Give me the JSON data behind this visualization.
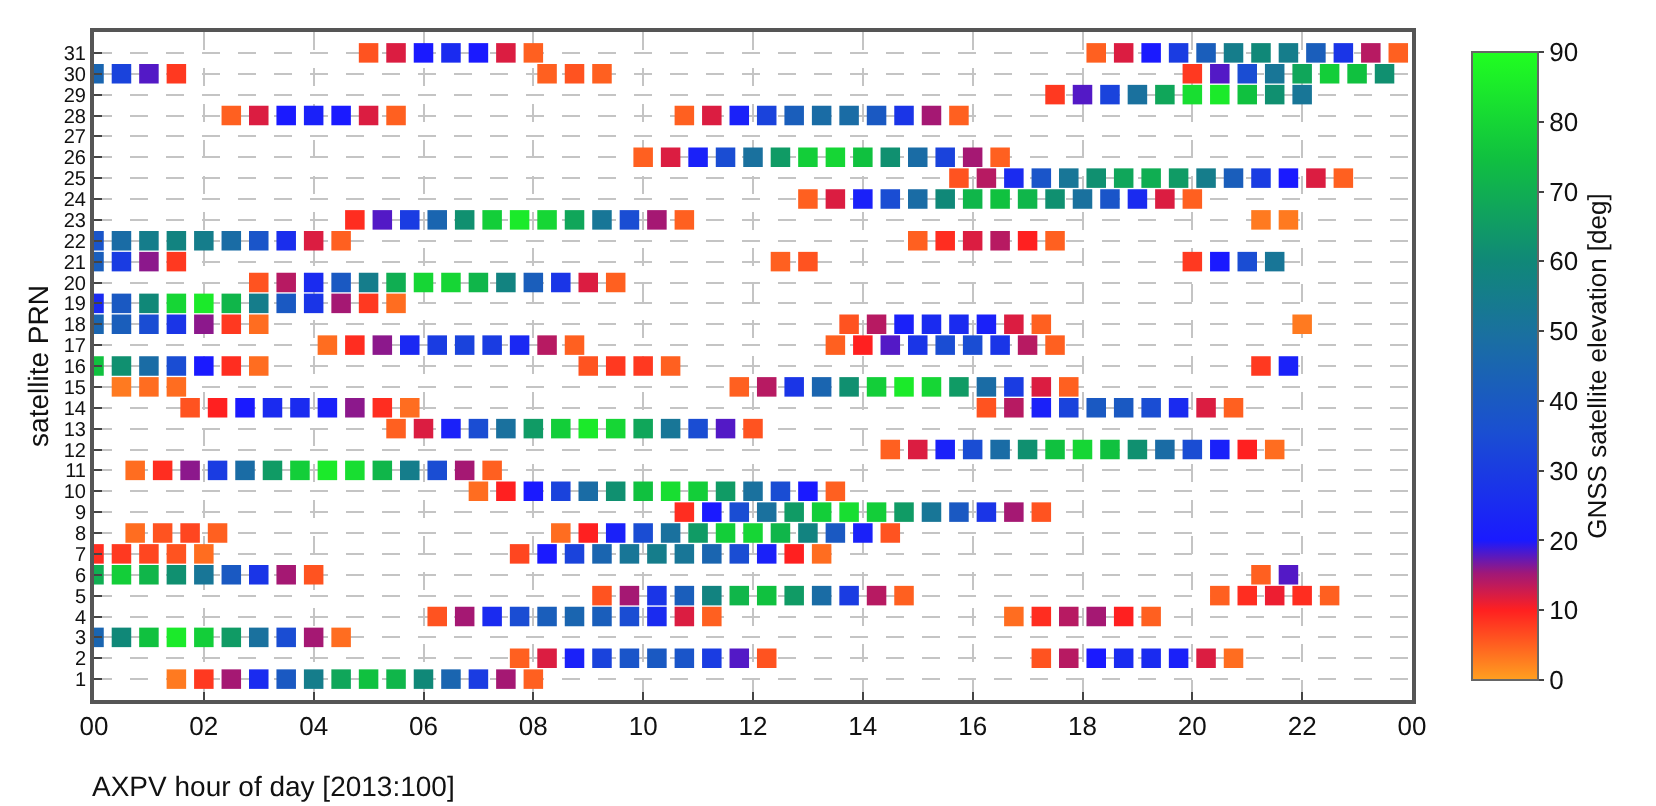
{
  "chart_data": {
    "type": "scatter",
    "xlabel": "AXPV hour of day [2013:100]",
    "ylabel": "satellite PRN",
    "clabel": "GNSS satellite elevation [deg]",
    "xlim": [
      0,
      24
    ],
    "xticks": [
      {
        "value": 0,
        "label": "00"
      },
      {
        "value": 2,
        "label": "02"
      },
      {
        "value": 4,
        "label": "04"
      },
      {
        "value": 6,
        "label": "06"
      },
      {
        "value": 8,
        "label": "08"
      },
      {
        "value": 10,
        "label": "10"
      },
      {
        "value": 12,
        "label": "12"
      },
      {
        "value": 14,
        "label": "14"
      },
      {
        "value": 16,
        "label": "16"
      },
      {
        "value": 18,
        "label": "18"
      },
      {
        "value": 20,
        "label": "20"
      },
      {
        "value": 22,
        "label": "22"
      },
      {
        "value": 24,
        "label": "00"
      }
    ],
    "ylim": [
      0,
      32
    ],
    "yticks": [
      1,
      2,
      3,
      4,
      5,
      6,
      7,
      8,
      9,
      10,
      11,
      12,
      13,
      14,
      15,
      16,
      17,
      18,
      19,
      20,
      21,
      22,
      23,
      24,
      25,
      26,
      27,
      28,
      29,
      30,
      31
    ],
    "clim": [
      0,
      90
    ],
    "cticks": [
      0,
      10,
      20,
      30,
      40,
      50,
      60,
      70,
      80,
      90
    ],
    "grid": true,
    "marker": "square",
    "x": [
      1.5,
      2,
      2.5,
      3,
      3.5,
      4,
      4.5,
      5,
      5.5,
      6,
      6.5,
      7,
      7.5,
      8,
      7.75,
      8.25,
      8.75,
      9.25,
      9.75,
      10.25,
      10.75,
      11.25,
      11.75,
      12.25,
      17.25,
      17.75,
      18.25,
      18.75,
      19.25,
      19.75,
      20.25,
      20.75,
      0,
      0.5,
      1,
      1.5,
      2,
      2.5,
      3,
      3.5,
      4,
      4.5,
      6.25,
      6.75,
      7.25,
      7.75,
      8.25,
      8.75,
      9.25,
      9.75,
      10.25,
      10.75,
      11.25,
      16.75,
      17.25,
      17.75,
      18.25,
      18.75,
      19.25,
      9.25,
      9.75,
      10.25,
      10.75,
      11.25,
      11.75,
      12.25,
      12.75,
      13.25,
      13.75,
      14.25,
      14.75,
      20.5,
      21,
      21.5,
      22,
      22.5,
      0,
      0.5,
      1,
      1.5,
      2,
      2.5,
      3,
      3.5,
      4,
      21.25,
      21.75,
      0,
      0.5,
      1,
      1.5,
      2,
      7.75,
      8.25,
      8.75,
      9.25,
      9.75,
      10.25,
      10.75,
      11.25,
      11.75,
      12.25,
      12.75,
      13.25,
      0.75,
      1.25,
      1.75,
      2.25,
      8.5,
      9,
      9.5,
      10,
      10.5,
      11,
      11.5,
      12,
      12.5,
      13,
      13.5,
      14,
      14.5,
      10.75,
      11.25,
      11.75,
      12.25,
      12.75,
      13.25,
      13.75,
      14.25,
      14.75,
      15.25,
      15.75,
      16.25,
      16.75,
      17.25,
      7,
      7.5,
      8,
      8.5,
      9,
      9.5,
      10,
      10.5,
      11,
      11.5,
      12,
      12.5,
      13,
      13.5,
      0.75,
      1.25,
      1.75,
      2.25,
      2.75,
      3.25,
      3.75,
      4.25,
      4.75,
      5.25,
      5.75,
      6.25,
      6.75,
      7.25,
      14.5,
      15,
      15.5,
      16,
      16.5,
      17,
      17.5,
      18,
      18.5,
      19,
      19.5,
      20,
      20.5,
      21,
      21.5,
      5.5,
      6,
      6.5,
      7,
      7.5,
      8,
      8.5,
      9,
      9.5,
      10,
      10.5,
      11,
      11.5,
      12,
      1.75,
      2.25,
      2.75,
      3.25,
      3.75,
      4.25,
      4.75,
      5.25,
      5.75,
      16.25,
      16.75,
      17.25,
      17.75,
      18.25,
      18.75,
      19.25,
      19.75,
      20.25,
      20.75,
      0.5,
      1,
      1.5,
      11.75,
      12.25,
      12.75,
      13.25,
      13.75,
      14.25,
      14.75,
      15.25,
      15.75,
      16.25,
      16.75,
      17.25,
      17.75,
      0,
      0.5,
      1,
      1.5,
      2,
      2.5,
      3,
      9,
      9.5,
      10,
      10.5,
      21.25,
      21.75,
      4.25,
      4.75,
      5.25,
      5.75,
      6.25,
      6.75,
      7.25,
      7.75,
      8.25,
      8.75,
      13.5,
      14,
      14.5,
      15,
      15.5,
      16,
      16.5,
      17,
      17.5,
      0,
      0.5,
      1,
      1.5,
      2,
      2.5,
      3,
      13.75,
      14.25,
      14.75,
      15.25,
      15.75,
      16.25,
      16.75,
      17.25,
      22,
      0,
      0.5,
      1,
      1.5,
      2,
      2.5,
      3,
      3.5,
      4,
      4.5,
      5,
      5.5,
      3,
      3.5,
      4,
      4.5,
      5,
      5.5,
      6,
      6.5,
      7,
      7.5,
      8,
      8.5,
      9,
      9.5,
      0,
      0.5,
      1,
      1.5,
      12.5,
      13,
      20,
      20.5,
      21,
      21.5,
      0,
      0.5,
      1,
      1.5,
      2,
      2.5,
      3,
      3.5,
      4,
      4.5,
      15,
      15.5,
      16,
      16.5,
      17,
      17.5,
      4.75,
      5.25,
      5.75,
      6.25,
      6.75,
      7.25,
      7.75,
      8.25,
      8.75,
      9.25,
      9.75,
      10.25,
      10.75,
      21.25,
      21.75,
      13,
      13.5,
      14,
      14.5,
      15,
      15.5,
      16,
      16.5,
      17,
      17.5,
      18,
      18.5,
      19,
      19.5,
      20,
      15.75,
      16.25,
      16.75,
      17.25,
      17.75,
      18.25,
      18.75,
      19.25,
      19.75,
      20.25,
      20.75,
      21.25,
      21.75,
      22.25,
      22.75,
      10,
      10.5,
      11,
      11.5,
      12,
      12.5,
      13,
      13.5,
      14,
      14.5,
      15,
      15.5,
      16,
      16.5,
      2.5,
      3,
      3.5,
      4,
      4.5,
      5,
      5.5,
      10.75,
      11.25,
      11.75,
      12.25,
      12.75,
      13.25,
      13.75,
      14.25,
      14.75,
      15.25,
      15.75,
      17.5,
      18,
      18.5,
      19,
      19.5,
      20,
      20.5,
      21,
      21.5,
      22,
      0,
      0.5,
      1,
      1.5,
      8.25,
      8.75,
      9.25,
      20,
      20.5,
      21,
      21.5,
      22,
      22.5,
      23,
      23.5,
      5,
      5.5,
      6,
      6.5,
      7,
      7.5,
      8,
      18.25,
      18.75,
      19.25,
      19.75,
      20.25,
      20.75,
      21.25,
      21.75,
      22.25,
      22.75,
      23.25,
      23.75
    ],
    "values": [
      1,
      1,
      1,
      1,
      1,
      1,
      1,
      1,
      1,
      1,
      1,
      1,
      1,
      1,
      2,
      2,
      2,
      2,
      2,
      2,
      2,
      2,
      2,
      2,
      2,
      2,
      2,
      2,
      2,
      2,
      2,
      2,
      3,
      3,
      3,
      3,
      3,
      3,
      3,
      3,
      3,
      3,
      4,
      4,
      4,
      4,
      4,
      4,
      4,
      4,
      4,
      4,
      4,
      4,
      4,
      4,
      4,
      4,
      4,
      5,
      5,
      5,
      5,
      5,
      5,
      5,
      5,
      5,
      5,
      5,
      5,
      5,
      5,
      5,
      5,
      5,
      6,
      6,
      6,
      6,
      6,
      6,
      6,
      6,
      6,
      6,
      6,
      7,
      7,
      7,
      7,
      7,
      7,
      7,
      7,
      7,
      7,
      7,
      7,
      7,
      7,
      7,
      7,
      7,
      8,
      8,
      8,
      8,
      8,
      8,
      8,
      8,
      8,
      8,
      8,
      8,
      8,
      8,
      8,
      8,
      8,
      9,
      9,
      9,
      9,
      9,
      9,
      9,
      9,
      9,
      9,
      9,
      9,
      9,
      9,
      10,
      10,
      10,
      10,
      10,
      10,
      10,
      10,
      10,
      10,
      10,
      10,
      10,
      10,
      11,
      11,
      11,
      11,
      11,
      11,
      11,
      11,
      11,
      11,
      11,
      11,
      11,
      11,
      12,
      12,
      12,
      12,
      12,
      12,
      12,
      12,
      12,
      12,
      12,
      12,
      12,
      12,
      12,
      13,
      13,
      13,
      13,
      13,
      13,
      13,
      13,
      13,
      13,
      13,
      13,
      13,
      13,
      14,
      14,
      14,
      14,
      14,
      14,
      14,
      14,
      14,
      14,
      14,
      14,
      14,
      14,
      14,
      14,
      14,
      14,
      14,
      15,
      15,
      15,
      15,
      15,
      15,
      15,
      15,
      15,
      15,
      15,
      15,
      15,
      15,
      15,
      15,
      16,
      16,
      16,
      16,
      16,
      16,
      16,
      16,
      16,
      16,
      16,
      16,
      16,
      17,
      17,
      17,
      17,
      17,
      17,
      17,
      17,
      17,
      17,
      17,
      17,
      17,
      17,
      17,
      17,
      17,
      17,
      17,
      18,
      18,
      18,
      18,
      18,
      18,
      18,
      18,
      18,
      18,
      18,
      18,
      18,
      18,
      18,
      18,
      19,
      19,
      19,
      19,
      19,
      19,
      19,
      19,
      19,
      19,
      19,
      19,
      20,
      20,
      20,
      20,
      20,
      20,
      20,
      20,
      20,
      20,
      20,
      20,
      20,
      20,
      21,
      21,
      21,
      21,
      21,
      21,
      21,
      21,
      21,
      21,
      22,
      22,
      22,
      22,
      22,
      22,
      22,
      22,
      22,
      22,
      22,
      22,
      22,
      22,
      22,
      22,
      23,
      23,
      23,
      23,
      23,
      23,
      23,
      23,
      23,
      23,
      23,
      23,
      23,
      23,
      23,
      24,
      24,
      24,
      24,
      24,
      24,
      24,
      24,
      24,
      24,
      24,
      24,
      24,
      24,
      24,
      25,
      25,
      25,
      25,
      25,
      25,
      25,
      25,
      25,
      25,
      25,
      25,
      25,
      25,
      25,
      26,
      26,
      26,
      26,
      26,
      26,
      26,
      26,
      26,
      26,
      26,
      26,
      26,
      26,
      28,
      28,
      28,
      28,
      28,
      28,
      28,
      28,
      28,
      28,
      28,
      28,
      28,
      28,
      28,
      28,
      28,
      28,
      29,
      29,
      29,
      29,
      29,
      29,
      29,
      29,
      29,
      29,
      30,
      30,
      30,
      30,
      30,
      30,
      30,
      30,
      30,
      30,
      30,
      30,
      30,
      30,
      30,
      31,
      31,
      31,
      31,
      31,
      31,
      31,
      31,
      31,
      31,
      31,
      31,
      31,
      31,
      31,
      31,
      31,
      31,
      31
    ],
    "cvalues": [
      3,
      8,
      15,
      25,
      40,
      55,
      68,
      75,
      72,
      60,
      45,
      30,
      15,
      5,
      5,
      12,
      22,
      32,
      38,
      40,
      38,
      30,
      18,
      6,
      6,
      14,
      20,
      25,
      25,
      22,
      12,
      4,
      45,
      60,
      75,
      85,
      78,
      65,
      50,
      35,
      15,
      4,
      6,
      15,
      25,
      35,
      42,
      45,
      42,
      35,
      25,
      12,
      5,
      4,
      9,
      14,
      15,
      10,
      5,
      6,
      15,
      28,
      42,
      58,
      72,
      75,
      65,
      48,
      30,
      14,
      5,
      5,
      9,
      11,
      9,
      5,
      70,
      78,
      72,
      62,
      52,
      40,
      28,
      15,
      6,
      5,
      18,
      9,
      8,
      7,
      6,
      4,
      7,
      20,
      32,
      45,
      52,
      55,
      52,
      45,
      35,
      22,
      10,
      4,
      4,
      6,
      7,
      5,
      4,
      10,
      22,
      35,
      50,
      65,
      78,
      80,
      72,
      58,
      40,
      22,
      6,
      9,
      20,
      35,
      50,
      65,
      78,
      82,
      78,
      65,
      52,
      40,
      28,
      15,
      6,
      4,
      10,
      20,
      32,
      48,
      62,
      75,
      82,
      78,
      65,
      50,
      35,
      20,
      5,
      4,
      9,
      16,
      30,
      48,
      65,
      78,
      85,
      82,
      72,
      55,
      35,
      15,
      5,
      5,
      12,
      22,
      35,
      48,
      62,
      75,
      80,
      75,
      62,
      48,
      35,
      22,
      10,
      4,
      5,
      12,
      22,
      35,
      50,
      65,
      78,
      85,
      80,
      68,
      52,
      35,
      18,
      6,
      6,
      10,
      20,
      25,
      25,
      22,
      16,
      9,
      4,
      6,
      14,
      22,
      32,
      40,
      40,
      35,
      25,
      12,
      5,
      3,
      4,
      4,
      5,
      14,
      28,
      45,
      62,
      78,
      85,
      80,
      65,
      48,
      30,
      12,
      5,
      75,
      62,
      48,
      35,
      20,
      9,
      4,
      6,
      8,
      8,
      5,
      8,
      22,
      4,
      9,
      16,
      24,
      30,
      32,
      30,
      24,
      14,
      5,
      5,
      10,
      18,
      28,
      35,
      35,
      28,
      14,
      5,
      45,
      42,
      35,
      28,
      16,
      8,
      4,
      6,
      14,
      22,
      25,
      25,
      22,
      12,
      5,
      3,
      25,
      40,
      60,
      80,
      85,
      72,
      55,
      40,
      28,
      15,
      8,
      4,
      6,
      14,
      25,
      40,
      55,
      70,
      80,
      80,
      72,
      58,
      42,
      28,
      12,
      5,
      42,
      30,
      16,
      8,
      5,
      6,
      8,
      20,
      35,
      52,
      38,
      48,
      55,
      58,
      55,
      48,
      38,
      26,
      12,
      5,
      5,
      9,
      12,
      14,
      10,
      5,
      9,
      18,
      30,
      45,
      62,
      78,
      85,
      80,
      68,
      52,
      35,
      15,
      5,
      3,
      3,
      5,
      12,
      22,
      35,
      48,
      60,
      72,
      75,
      72,
      62,
      50,
      38,
      25,
      12,
      5,
      6,
      14,
      25,
      38,
      52,
      62,
      68,
      70,
      65,
      55,
      42,
      30,
      20,
      12,
      5,
      5,
      12,
      22,
      35,
      50,
      65,
      78,
      80,
      75,
      62,
      48,
      32,
      15,
      5,
      5,
      12,
      20,
      22,
      20,
      12,
      5,
      5,
      12,
      22,
      32,
      42,
      48,
      48,
      40,
      28,
      15,
      5,
      8,
      18,
      32,
      50,
      68,
      82,
      85,
      75,
      62,
      52,
      45,
      32,
      18,
      8,
      5,
      6,
      5,
      8,
      18,
      35,
      52,
      68,
      78,
      75,
      62,
      6,
      12,
      20,
      25,
      20,
      12,
      5,
      5,
      12,
      20,
      30,
      42,
      55,
      60,
      55,
      42,
      28,
      14,
      5
    ]
  }
}
